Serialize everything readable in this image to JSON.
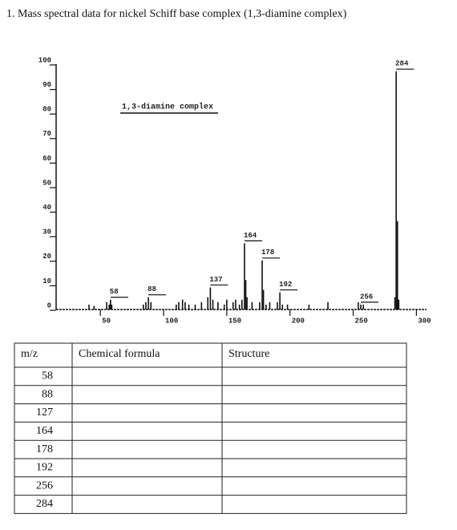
{
  "question": "1.  Mass spectral data for nickel Schiff base complex (1,3-diamine complex)",
  "chart_data": {
    "type": "bar",
    "annotation": "1,3-diamine complex",
    "x": [
      41,
      45,
      55,
      57,
      58,
      59,
      84,
      86,
      88,
      90,
      110,
      112,
      115,
      117,
      120,
      125,
      130,
      135,
      137,
      139,
      143,
      148,
      150,
      155,
      157,
      160,
      162,
      164,
      165,
      166,
      170,
      176,
      178,
      179,
      181,
      184,
      190,
      192,
      194,
      198,
      215,
      230,
      254,
      256,
      258,
      283,
      284,
      285,
      286
    ],
    "values": [
      2,
      1.5,
      3,
      2,
      4,
      2,
      2,
      3,
      5,
      3,
      2,
      3,
      4,
      3,
      2,
      2,
      3,
      5,
      9,
      4,
      3,
      2,
      4,
      3,
      4,
      2,
      4,
      27,
      12,
      5,
      3,
      3,
      20,
      8,
      2,
      3,
      3,
      7,
      2,
      2,
      2,
      3,
      3,
      2,
      2,
      5,
      97,
      36,
      4
    ],
    "peak_labels": [
      null,
      null,
      null,
      null,
      "58",
      null,
      null,
      null,
      "88",
      null,
      null,
      null,
      null,
      null,
      null,
      null,
      null,
      null,
      "137",
      null,
      null,
      null,
      null,
      null,
      null,
      null,
      null,
      "164",
      null,
      null,
      null,
      null,
      "178",
      null,
      null,
      null,
      null,
      "192",
      null,
      null,
      null,
      null,
      null,
      "256",
      null,
      null,
      "284",
      null,
      null
    ],
    "color": "#111111",
    "xlim": [
      15,
      308
    ],
    "xticks": [
      50,
      100,
      150,
      200,
      250,
      300
    ],
    "ylim": [
      0,
      100
    ],
    "yticks": [
      0,
      10,
      20,
      30,
      40,
      50,
      60,
      70,
      80,
      90,
      100
    ]
  },
  "table": {
    "header": [
      "m/z",
      "Chemical formula",
      "Structure"
    ],
    "mz": [
      58,
      88,
      127,
      164,
      178,
      192,
      256,
      284
    ]
  }
}
